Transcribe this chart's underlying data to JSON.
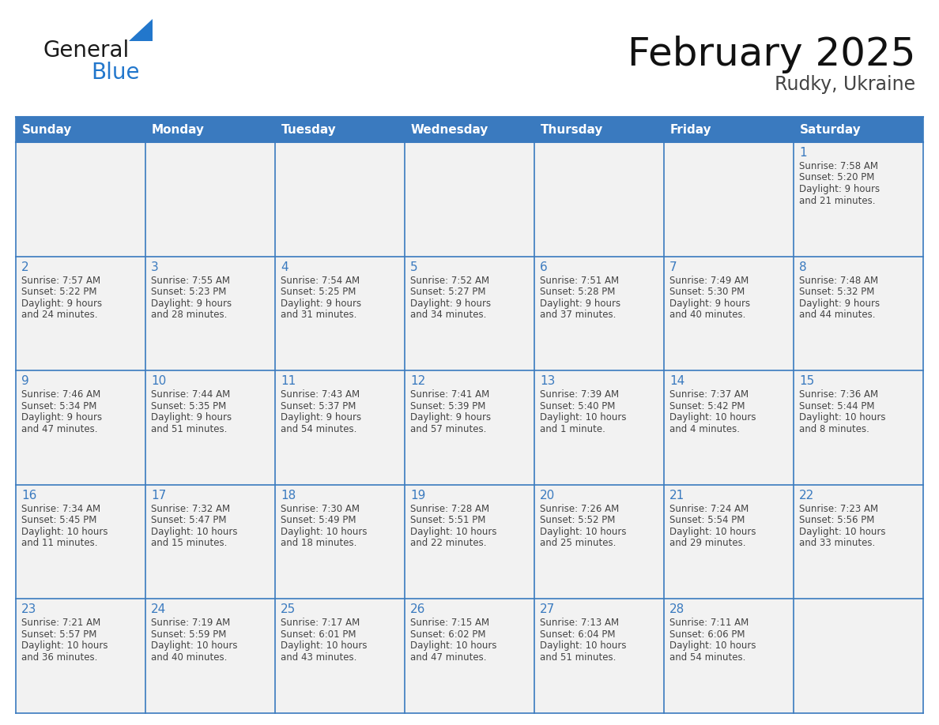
{
  "title": "February 2025",
  "subtitle": "Rudky, Ukraine",
  "days_of_week": [
    "Sunday",
    "Monday",
    "Tuesday",
    "Wednesday",
    "Thursday",
    "Friday",
    "Saturday"
  ],
  "header_bg": "#3a7abf",
  "header_text_color": "#ffffff",
  "cell_bg": "#f2f2f2",
  "cell_bg_white": "#ffffff",
  "border_color": "#3a7abf",
  "day_num_color": "#3a7abf",
  "text_color": "#444444",
  "logo_general_color": "#1a1a1a",
  "logo_blue_color": "#2277cc",
  "calendar_data": [
    {
      "day": 1,
      "col": 6,
      "row": 0,
      "sunrise": "7:58 AM",
      "sunset": "5:20 PM",
      "daylight_h": "9 hours",
      "daylight_m": "and 21 minutes."
    },
    {
      "day": 2,
      "col": 0,
      "row": 1,
      "sunrise": "7:57 AM",
      "sunset": "5:22 PM",
      "daylight_h": "9 hours",
      "daylight_m": "and 24 minutes."
    },
    {
      "day": 3,
      "col": 1,
      "row": 1,
      "sunrise": "7:55 AM",
      "sunset": "5:23 PM",
      "daylight_h": "9 hours",
      "daylight_m": "and 28 minutes."
    },
    {
      "day": 4,
      "col": 2,
      "row": 1,
      "sunrise": "7:54 AM",
      "sunset": "5:25 PM",
      "daylight_h": "9 hours",
      "daylight_m": "and 31 minutes."
    },
    {
      "day": 5,
      "col": 3,
      "row": 1,
      "sunrise": "7:52 AM",
      "sunset": "5:27 PM",
      "daylight_h": "9 hours",
      "daylight_m": "and 34 minutes."
    },
    {
      "day": 6,
      "col": 4,
      "row": 1,
      "sunrise": "7:51 AM",
      "sunset": "5:28 PM",
      "daylight_h": "9 hours",
      "daylight_m": "and 37 minutes."
    },
    {
      "day": 7,
      "col": 5,
      "row": 1,
      "sunrise": "7:49 AM",
      "sunset": "5:30 PM",
      "daylight_h": "9 hours",
      "daylight_m": "and 40 minutes."
    },
    {
      "day": 8,
      "col": 6,
      "row": 1,
      "sunrise": "7:48 AM",
      "sunset": "5:32 PM",
      "daylight_h": "9 hours",
      "daylight_m": "and 44 minutes."
    },
    {
      "day": 9,
      "col": 0,
      "row": 2,
      "sunrise": "7:46 AM",
      "sunset": "5:34 PM",
      "daylight_h": "9 hours",
      "daylight_m": "and 47 minutes."
    },
    {
      "day": 10,
      "col": 1,
      "row": 2,
      "sunrise": "7:44 AM",
      "sunset": "5:35 PM",
      "daylight_h": "9 hours",
      "daylight_m": "and 51 minutes."
    },
    {
      "day": 11,
      "col": 2,
      "row": 2,
      "sunrise": "7:43 AM",
      "sunset": "5:37 PM",
      "daylight_h": "9 hours",
      "daylight_m": "and 54 minutes."
    },
    {
      "day": 12,
      "col": 3,
      "row": 2,
      "sunrise": "7:41 AM",
      "sunset": "5:39 PM",
      "daylight_h": "9 hours",
      "daylight_m": "and 57 minutes."
    },
    {
      "day": 13,
      "col": 4,
      "row": 2,
      "sunrise": "7:39 AM",
      "sunset": "5:40 PM",
      "daylight_h": "10 hours",
      "daylight_m": "and 1 minute."
    },
    {
      "day": 14,
      "col": 5,
      "row": 2,
      "sunrise": "7:37 AM",
      "sunset": "5:42 PM",
      "daylight_h": "10 hours",
      "daylight_m": "and 4 minutes."
    },
    {
      "day": 15,
      "col": 6,
      "row": 2,
      "sunrise": "7:36 AM",
      "sunset": "5:44 PM",
      "daylight_h": "10 hours",
      "daylight_m": "and 8 minutes."
    },
    {
      "day": 16,
      "col": 0,
      "row": 3,
      "sunrise": "7:34 AM",
      "sunset": "5:45 PM",
      "daylight_h": "10 hours",
      "daylight_m": "and 11 minutes."
    },
    {
      "day": 17,
      "col": 1,
      "row": 3,
      "sunrise": "7:32 AM",
      "sunset": "5:47 PM",
      "daylight_h": "10 hours",
      "daylight_m": "and 15 minutes."
    },
    {
      "day": 18,
      "col": 2,
      "row": 3,
      "sunrise": "7:30 AM",
      "sunset": "5:49 PM",
      "daylight_h": "10 hours",
      "daylight_m": "and 18 minutes."
    },
    {
      "day": 19,
      "col": 3,
      "row": 3,
      "sunrise": "7:28 AM",
      "sunset": "5:51 PM",
      "daylight_h": "10 hours",
      "daylight_m": "and 22 minutes."
    },
    {
      "day": 20,
      "col": 4,
      "row": 3,
      "sunrise": "7:26 AM",
      "sunset": "5:52 PM",
      "daylight_h": "10 hours",
      "daylight_m": "and 25 minutes."
    },
    {
      "day": 21,
      "col": 5,
      "row": 3,
      "sunrise": "7:24 AM",
      "sunset": "5:54 PM",
      "daylight_h": "10 hours",
      "daylight_m": "and 29 minutes."
    },
    {
      "day": 22,
      "col": 6,
      "row": 3,
      "sunrise": "7:23 AM",
      "sunset": "5:56 PM",
      "daylight_h": "10 hours",
      "daylight_m": "and 33 minutes."
    },
    {
      "day": 23,
      "col": 0,
      "row": 4,
      "sunrise": "7:21 AM",
      "sunset": "5:57 PM",
      "daylight_h": "10 hours",
      "daylight_m": "and 36 minutes."
    },
    {
      "day": 24,
      "col": 1,
      "row": 4,
      "sunrise": "7:19 AM",
      "sunset": "5:59 PM",
      "daylight_h": "10 hours",
      "daylight_m": "and 40 minutes."
    },
    {
      "day": 25,
      "col": 2,
      "row": 4,
      "sunrise": "7:17 AM",
      "sunset": "6:01 PM",
      "daylight_h": "10 hours",
      "daylight_m": "and 43 minutes."
    },
    {
      "day": 26,
      "col": 3,
      "row": 4,
      "sunrise": "7:15 AM",
      "sunset": "6:02 PM",
      "daylight_h": "10 hours",
      "daylight_m": "and 47 minutes."
    },
    {
      "day": 27,
      "col": 4,
      "row": 4,
      "sunrise": "7:13 AM",
      "sunset": "6:04 PM",
      "daylight_h": "10 hours",
      "daylight_m": "and 51 minutes."
    },
    {
      "day": 28,
      "col": 5,
      "row": 4,
      "sunrise": "7:11 AM",
      "sunset": "6:06 PM",
      "daylight_h": "10 hours",
      "daylight_m": "and 54 minutes."
    }
  ]
}
